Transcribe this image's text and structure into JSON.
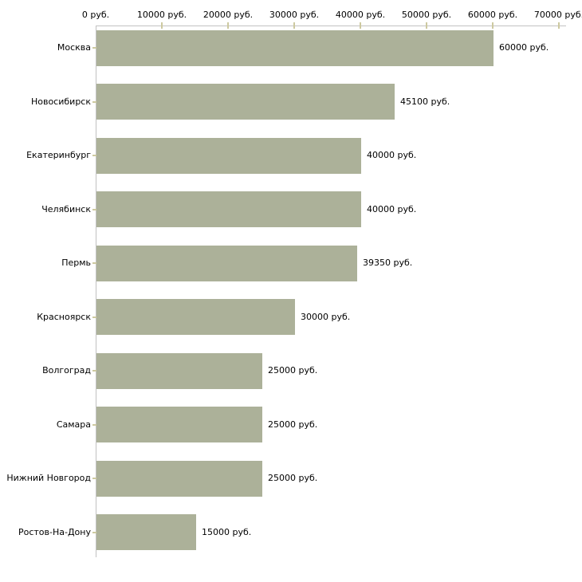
{
  "chart_data": {
    "type": "bar",
    "orientation": "horizontal",
    "title": "",
    "xlabel": "",
    "ylabel": "",
    "categories": [
      "Москва",
      "Новосибирск",
      "Екатеринбург",
      "Челябинск",
      "Пермь",
      "Красноярск",
      "Волгоград",
      "Самара",
      "Нижний Новгород",
      "Ростов-На-Дону"
    ],
    "values": [
      60000,
      45100,
      40000,
      40000,
      39350,
      30000,
      25000,
      25000,
      25000,
      15000
    ],
    "value_labels": [
      "60000 руб.",
      "45100 руб.",
      "40000 руб.",
      "40000 руб.",
      "39350 руб.",
      "30000 руб.",
      "25000 руб.",
      "25000 руб.",
      "25000 руб.",
      "15000 руб."
    ],
    "x_ticks": [
      0,
      10000,
      20000,
      30000,
      40000,
      50000,
      60000,
      70000
    ],
    "x_tick_labels": [
      "0 руб.",
      "10000 руб.",
      "20000 руб.",
      "30000 руб.",
      "40000 руб.",
      "50000 руб.",
      "60000 руб.",
      "70000 руб."
    ],
    "xlim": [
      0,
      70000
    ],
    "grid": "off",
    "legend_position": "none",
    "colors": {
      "bar": "#acb199",
      "axis": "#c2c2c2",
      "tick": "#cdc9a0",
      "text": "#000000",
      "background": "#ffffff"
    }
  }
}
